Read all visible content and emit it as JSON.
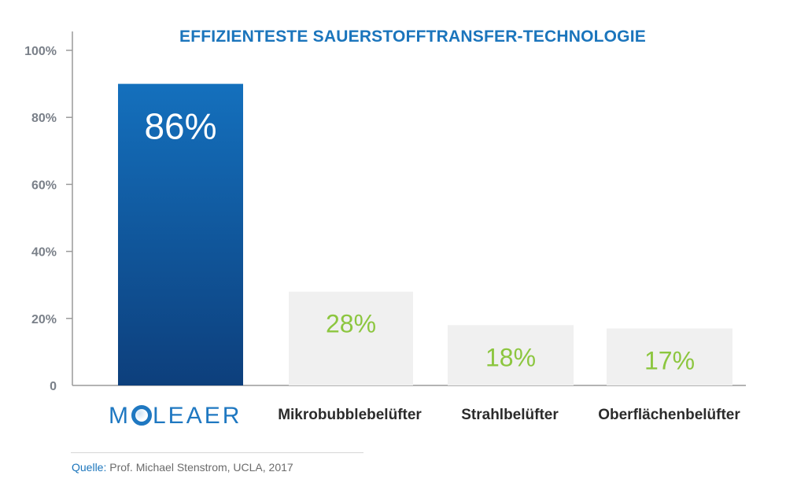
{
  "chart_data": {
    "type": "bar",
    "title": "EFFIZIENTESTE SAUERSTOFFTRANSFER-TECHNOLOGIE",
    "categories": [
      "MOLEAER",
      "Mikrobubblebelüfter",
      "Strahlbelüfter",
      "Oberflächenbelüfter"
    ],
    "values": [
      86,
      28,
      18,
      17
    ],
    "data_labels": [
      "86%",
      "28%",
      "18%",
      "17%"
    ],
    "y_ticks": [
      "0",
      "20%",
      "40%",
      "60%",
      "80%",
      "100%"
    ],
    "ylim": [
      0,
      100
    ],
    "bar_colors": [
      "#0f5aa0",
      "#f0f0f0",
      "#f0f0f0",
      "#f0f0f0"
    ],
    "label_colors": [
      "#ffffff",
      "#8cc63f",
      "#8cc63f",
      "#8cc63f"
    ],
    "grid": false,
    "xlabel": "",
    "ylabel": ""
  },
  "logo": {
    "text_left": "M",
    "text_right": "LEAER",
    "color": "#1f78c1"
  },
  "source": {
    "key": "Quelle:",
    "text": "Prof. Michael Stenstrom, UCLA, 2017"
  }
}
